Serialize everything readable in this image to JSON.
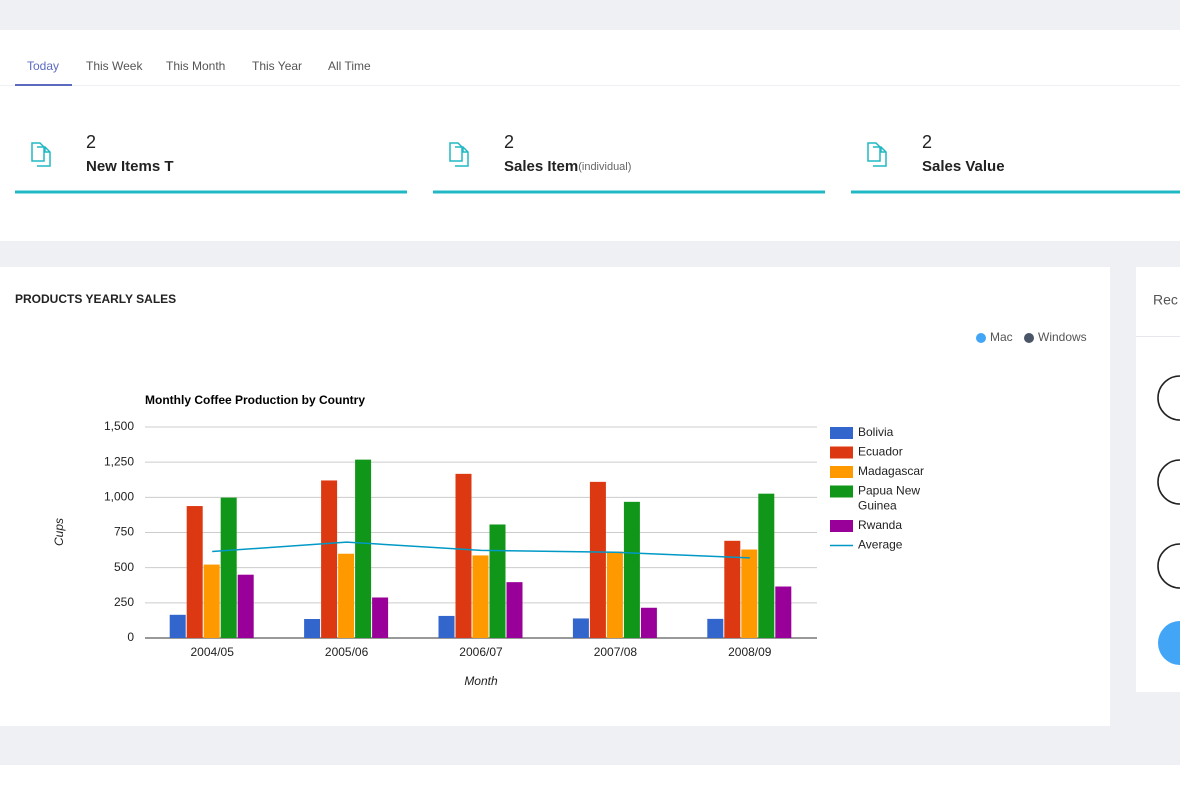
{
  "tabs": [
    "Today",
    "This Week",
    "This Month",
    "This Year",
    "All Time"
  ],
  "cards": [
    {
      "value": 2,
      "label": "New Items T"
    },
    {
      "value": 2,
      "label": "Sales Item",
      "note": "(individual)"
    },
    {
      "value": 2,
      "label": "Sales Value"
    }
  ],
  "panel_title": "PRODUCTS YEARLY SALES",
  "mini_legend": [
    "Mac",
    "Windows"
  ],
  "side_title": "Rec",
  "chart_data": {
    "type": "combo",
    "title": "Monthly Coffee Production by Country",
    "y_label": "Cups",
    "x_label": "Month",
    "categories": [
      "2004/05",
      "2005/06",
      "2006/07",
      "2007/08",
      "2008/09"
    ],
    "ylim": [
      0,
      1500
    ],
    "yticks": [
      0,
      250,
      500,
      750,
      {
        "value": 1000,
        "label": "1,000"
      },
      {
        "value": 1250,
        "label": "1,250"
      },
      {
        "value": 1500,
        "label": "1,500"
      }
    ],
    "grid": true,
    "legend": "right",
    "series": [
      {
        "name": "Bolivia",
        "type": "bar",
        "color": "#3366cc",
        "values": [
          165,
          135,
          157,
          139,
          136
        ]
      },
      {
        "name": "Ecuador",
        "type": "bar",
        "color": "#dc3912",
        "values": [
          938,
          1120,
          1167,
          1110,
          691
        ]
      },
      {
        "name": "Madagascar",
        "type": "bar",
        "color": "#ff9900",
        "values": [
          522,
          599,
          587,
          615,
          629
        ]
      },
      {
        "name": "Papua New Guinea",
        "type": "bar",
        "color": "#109618",
        "values": [
          998,
          1268,
          807,
          968,
          1026
        ]
      },
      {
        "name": "Rwanda",
        "type": "bar",
        "color": "#990099",
        "values": [
          450,
          288,
          397,
          215,
          366
        ]
      },
      {
        "name": "Average",
        "type": "line",
        "color": "#0099c6",
        "values": [
          614.6,
          682,
          623,
          609.4,
          569.6
        ]
      }
    ]
  }
}
